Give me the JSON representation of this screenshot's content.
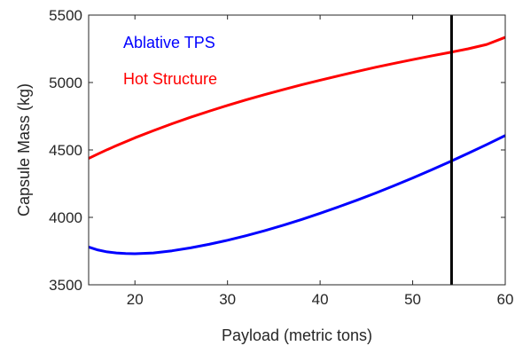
{
  "chart_data": {
    "type": "line",
    "title": "",
    "xlabel": "Payload (metric tons)",
    "ylabel": "Capsule Mass (kg)",
    "xlim": [
      15,
      60
    ],
    "ylim": [
      3500,
      5500
    ],
    "xticks": [
      20,
      30,
      40,
      50,
      60
    ],
    "yticks": [
      3500,
      4000,
      4500,
      5000,
      5500
    ],
    "grid": false,
    "legend_placement": "top-left",
    "series": [
      {
        "name": "Ablative TPS",
        "color": "#0000ff",
        "x": [
          15,
          16,
          17,
          18,
          19,
          20,
          22,
          24,
          26,
          28,
          30,
          32,
          34,
          36,
          38,
          40,
          42,
          44,
          46,
          48,
          50,
          52,
          54,
          56,
          58,
          60
        ],
        "y": [
          3780,
          3758,
          3744,
          3736,
          3732,
          3730,
          3736,
          3752,
          3774,
          3800,
          3830,
          3864,
          3901,
          3941,
          3984,
          4030,
          4078,
          4128,
          4180,
          4235,
          4292,
          4351,
          4412,
          4475,
          4540,
          4607
        ]
      },
      {
        "name": "Hot Structure",
        "color": "#ff0000",
        "x": [
          15,
          16,
          17,
          18,
          20,
          22,
          24,
          26,
          28,
          30,
          32,
          34,
          36,
          38,
          40,
          42,
          44,
          46,
          48,
          50,
          52,
          54,
          56,
          58,
          60
        ],
        "y": [
          4437,
          4470,
          4502,
          4532,
          4590,
          4643,
          4694,
          4742,
          4787,
          4830,
          4871,
          4910,
          4947,
          4983,
          5017,
          5050,
          5082,
          5113,
          5142,
          5170,
          5197,
          5223,
          5250,
          5282,
          5335
        ]
      }
    ],
    "annotations": [
      {
        "type": "vertical-line",
        "x": 54.2,
        "color": "#000000"
      }
    ]
  }
}
